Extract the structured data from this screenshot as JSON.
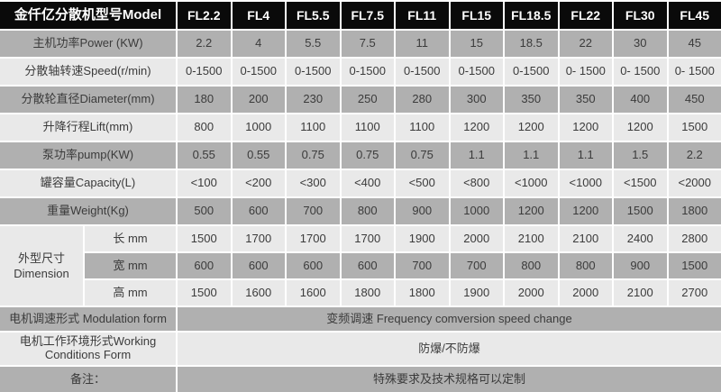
{
  "header": {
    "label": "金仟亿分散机型号Model",
    "models": [
      "FL2.2",
      "FL4",
      "FL5.5",
      "FL7.5",
      "FL11",
      "FL15",
      "FL18.5",
      "FL22",
      "FL30",
      "FL45"
    ]
  },
  "rows": [
    {
      "label": "主机功率Power (KW)",
      "values": [
        "2.2",
        "4",
        "5.5",
        "7.5",
        "11",
        "15",
        "18.5",
        "22",
        "30",
        "45"
      ]
    },
    {
      "label": "分散轴转速Speed(r/min)",
      "values": [
        "0-1500",
        "0-1500",
        "0-1500",
        "0-1500",
        "0-1500",
        "0-1500",
        "0-1500",
        "0- 1500",
        "0- 1500",
        "0- 1500"
      ]
    },
    {
      "label": "分散轮直径Diameter(mm)",
      "values": [
        "180",
        "200",
        "230",
        "250",
        "280",
        "300",
        "350",
        "350",
        "400",
        "450"
      ]
    },
    {
      "label": "升降行程Lift(mm)",
      "values": [
        "800",
        "1000",
        "1100",
        "1100",
        "1100",
        "1200",
        "1200",
        "1200",
        "1200",
        "1500"
      ]
    },
    {
      "label": "泵功率pump(KW)",
      "values": [
        "0.55",
        "0.55",
        "0.75",
        "0.75",
        "0.75",
        "1.1",
        "1.1",
        "1.1",
        "1.5",
        "2.2"
      ]
    },
    {
      "label": "罐容量Capacity(L)",
      "values": [
        "<100",
        "<200",
        "<300",
        "<400",
        "<500",
        "<800",
        "<1000",
        "<1000",
        "<1500",
        "<2000"
      ]
    },
    {
      "label": "重量Weight(Kg)",
      "values": [
        "500",
        "600",
        "700",
        "800",
        "900",
        "1000",
        "1200",
        "1200",
        "1500",
        "1800"
      ]
    }
  ],
  "dimension": {
    "label_cn": "外型尺寸",
    "label_en": "Dimension",
    "sub_rows": [
      {
        "label": "长 mm",
        "values": [
          "1500",
          "1700",
          "1700",
          "1700",
          "1900",
          "2000",
          "2100",
          "2100",
          "2400",
          "2800"
        ]
      },
      {
        "label": "宽 mm",
        "values": [
          "600",
          "600",
          "600",
          "600",
          "700",
          "700",
          "800",
          "800",
          "900",
          "1500"
        ]
      },
      {
        "label": "高 mm",
        "values": [
          "1500",
          "1600",
          "1600",
          "1800",
          "1800",
          "1900",
          "2000",
          "2000",
          "2100",
          "2700"
        ]
      }
    ]
  },
  "footer_rows": [
    {
      "label": "电机调速形式 Modulation form",
      "value": "变频调速 Frequency comversion speed change"
    },
    {
      "label": "电机工作环境形式Working Conditions Form",
      "value": "防爆/不防爆"
    },
    {
      "label": "备注：",
      "value": "特殊要求及技术规格可以定制"
    }
  ],
  "colors": {
    "header_bg": "#0a0a0a",
    "header_text": "#ffffff",
    "row_gray": "#b0b0b0",
    "row_light": "#e9e9e9",
    "separator": "#ffffff",
    "text": "#3b3b3b"
  }
}
